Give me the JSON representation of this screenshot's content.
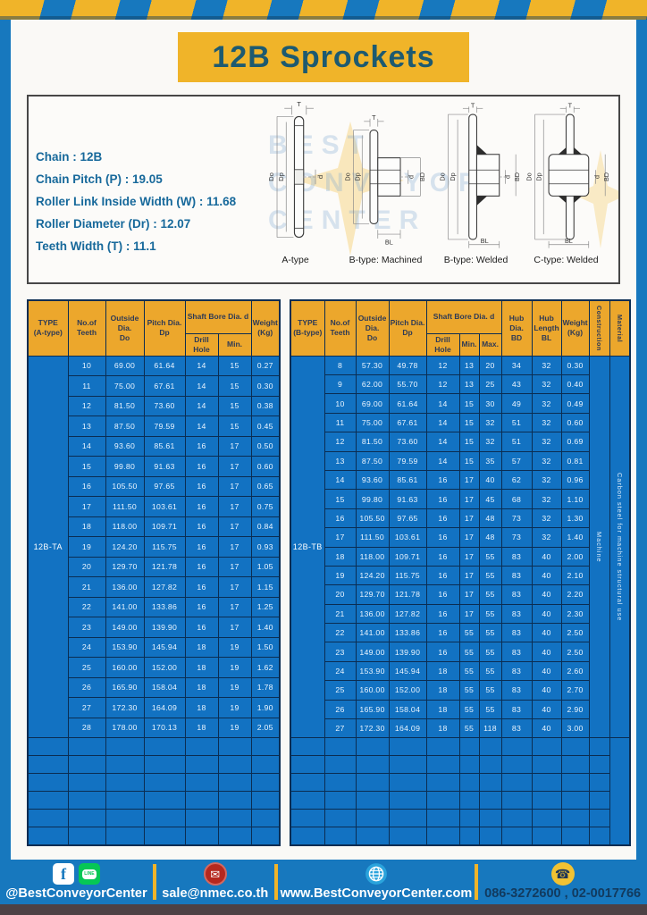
{
  "header": {
    "title": "12B Sprockets"
  },
  "info": {
    "specs": [
      "Chain  :  12B",
      "Chain Pitch (P)  :  19.05",
      "Roller Link Inside Width (W) : 11.68",
      "Roller Diameter (Dr)  : 12.07",
      "Teeth Width (T)  :  11.1"
    ],
    "diagram_captions": [
      "A-type",
      "B-type: Machined",
      "B-type: Welded",
      "C-type: Welded"
    ],
    "dim_labels": {
      "t": "T",
      "do": "Do",
      "dp": "Dp",
      "d": "d",
      "bd": "BD",
      "bl": "BL"
    },
    "watermark_lines": [
      "BEST",
      "CONVEYOR",
      "CENTER"
    ]
  },
  "left_table": {
    "type_label": "12B-TA",
    "headers": {
      "type_l1": "TYPE",
      "type_l2": "(A-type)",
      "teeth_l1": "No.of",
      "teeth_l2": "Teeth",
      "outside_l1": "Outside",
      "outside_l2": "Dia.",
      "outside_l3": "Do",
      "pitch_l1": "Pitch Dia.",
      "pitch_l2": "Dp",
      "shaft_bore": "Shaft Bore Dia. d",
      "drill": "Drill Hole",
      "min": "Min.",
      "weight_l1": "Weight",
      "weight_l2": "(Kg)"
    },
    "rows": [
      [
        "10",
        "69.00",
        "61.64",
        "14",
        "15",
        "0.27"
      ],
      [
        "11",
        "75.00",
        "67.61",
        "14",
        "15",
        "0.30"
      ],
      [
        "12",
        "81.50",
        "73.60",
        "14",
        "15",
        "0.38"
      ],
      [
        "13",
        "87.50",
        "79.59",
        "14",
        "15",
        "0.45"
      ],
      [
        "14",
        "93.60",
        "85.61",
        "16",
        "17",
        "0.50"
      ],
      [
        "15",
        "99.80",
        "91.63",
        "16",
        "17",
        "0.60"
      ],
      [
        "16",
        "105.50",
        "97.65",
        "16",
        "17",
        "0.65"
      ],
      [
        "17",
        "111.50",
        "103.61",
        "16",
        "17",
        "0.75"
      ],
      [
        "18",
        "118.00",
        "109.71",
        "16",
        "17",
        "0.84"
      ],
      [
        "19",
        "124.20",
        "115.75",
        "16",
        "17",
        "0.93"
      ],
      [
        "20",
        "129.70",
        "121.78",
        "16",
        "17",
        "1.05"
      ],
      [
        "21",
        "136.00",
        "127.82",
        "16",
        "17",
        "1.15"
      ],
      [
        "22",
        "141.00",
        "133.86",
        "16",
        "17",
        "1.25"
      ],
      [
        "23",
        "149.00",
        "139.90",
        "16",
        "17",
        "1.40"
      ],
      [
        "24",
        "153.90",
        "145.94",
        "18",
        "19",
        "1.50"
      ],
      [
        "25",
        "160.00",
        "152.00",
        "18",
        "19",
        "1.62"
      ],
      [
        "26",
        "165.90",
        "158.04",
        "18",
        "19",
        "1.78"
      ],
      [
        "27",
        "172.30",
        "164.09",
        "18",
        "19",
        "1.90"
      ],
      [
        "28",
        "178.00",
        "170.13",
        "18",
        "19",
        "2.05"
      ]
    ],
    "empty_row_count": 6
  },
  "right_table": {
    "type_label": "12B-TB",
    "construction": "Machine",
    "material": "Carbon steel for machine structural use",
    "headers": {
      "type_l1": "TYPE",
      "type_l2": "(B-type)",
      "teeth_l1": "No.of",
      "teeth_l2": "Teeth",
      "outside_l1": "Outside",
      "outside_l2": "Dia.",
      "outside_l3": "Do",
      "pitch_l1": "Pitch Dia.",
      "pitch_l2": "Dp",
      "shaft_bore": "Shaft Bore Dia. d",
      "drill": "Drill Hole",
      "min": "Min.",
      "max": "Max.",
      "hub_dia_l1": "Hub Dia.",
      "hub_dia_l2": "BD",
      "hub_len_l1": "Hub",
      "hub_len_l2": "Length",
      "hub_len_l3": "BL",
      "weight_l1": "Weight",
      "weight_l2": "(Kg)",
      "construction": "Construction",
      "material": "Material"
    },
    "rows": [
      [
        "8",
        "57.30",
        "49.78",
        "12",
        "13",
        "20",
        "34",
        "32",
        "0.30"
      ],
      [
        "9",
        "62.00",
        "55.70",
        "12",
        "13",
        "25",
        "43",
        "32",
        "0.40"
      ],
      [
        "10",
        "69.00",
        "61.64",
        "14",
        "15",
        "30",
        "49",
        "32",
        "0.49"
      ],
      [
        "11",
        "75.00",
        "67.61",
        "14",
        "15",
        "32",
        "51",
        "32",
        "0.60"
      ],
      [
        "12",
        "81.50",
        "73.60",
        "14",
        "15",
        "32",
        "51",
        "32",
        "0.69"
      ],
      [
        "13",
        "87.50",
        "79.59",
        "14",
        "15",
        "35",
        "57",
        "32",
        "0.81"
      ],
      [
        "14",
        "93.60",
        "85.61",
        "16",
        "17",
        "40",
        "62",
        "32",
        "0.96"
      ],
      [
        "15",
        "99.80",
        "91.63",
        "16",
        "17",
        "45",
        "68",
        "32",
        "1.10"
      ],
      [
        "16",
        "105.50",
        "97.65",
        "16",
        "17",
        "48",
        "73",
        "32",
        "1.30"
      ],
      [
        "17",
        "111.50",
        "103.61",
        "16",
        "17",
        "48",
        "73",
        "32",
        "1.40"
      ],
      [
        "18",
        "118.00",
        "109.71",
        "16",
        "17",
        "55",
        "83",
        "40",
        "2.00"
      ],
      [
        "19",
        "124.20",
        "115.75",
        "16",
        "17",
        "55",
        "83",
        "40",
        "2.10"
      ],
      [
        "20",
        "129.70",
        "121.78",
        "16",
        "17",
        "55",
        "83",
        "40",
        "2.20"
      ],
      [
        "21",
        "136.00",
        "127.82",
        "16",
        "17",
        "55",
        "83",
        "40",
        "2.30"
      ],
      [
        "22",
        "141.00",
        "133.86",
        "16",
        "55",
        "55",
        "83",
        "40",
        "2.50"
      ],
      [
        "23",
        "149.00",
        "139.90",
        "16",
        "55",
        "55",
        "83",
        "40",
        "2.50"
      ],
      [
        "24",
        "153.90",
        "145.94",
        "18",
        "55",
        "55",
        "83",
        "40",
        "2.60"
      ],
      [
        "25",
        "160.00",
        "152.00",
        "18",
        "55",
        "55",
        "83",
        "40",
        "2.70"
      ],
      [
        "26",
        "165.90",
        "158.04",
        "18",
        "55",
        "55",
        "83",
        "40",
        "2.90"
      ],
      [
        "27",
        "172.30",
        "164.09",
        "18",
        "55",
        "118",
        "83",
        "40",
        "3.00"
      ]
    ],
    "empty_row_count": 6
  },
  "footer": {
    "social_label": "@BestConveyorCenter",
    "line_badge": "LINE",
    "email": "sale@nmec.co.th",
    "website": "www.BestConveyorCenter.com",
    "phones": "086-3272600 , 02-0017766"
  },
  "colors": {
    "frame_blue": "#1778be",
    "accent_yellow": "#f0b429",
    "table_header_orange": "#eca72c",
    "table_cell_blue": "#1272c2",
    "grid_navy": "#0b2d52",
    "title_teal": "#1d5a70",
    "spec_teal": "#17699b",
    "line_green": "#06c755",
    "mail_red": "#b5281e",
    "phone_yellow": "#f1c232"
  }
}
